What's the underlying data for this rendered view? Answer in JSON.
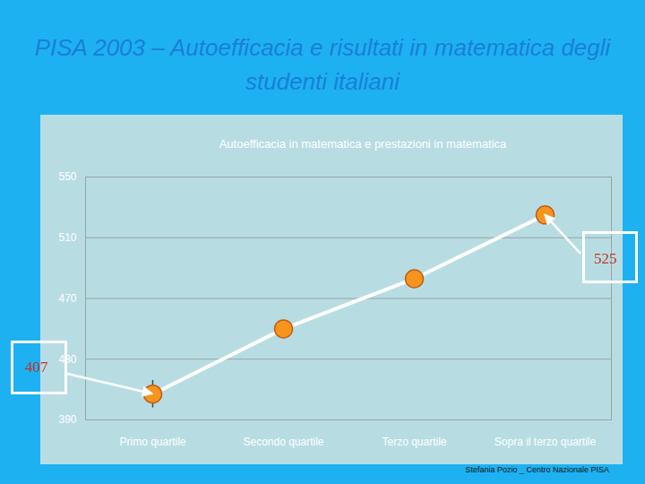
{
  "chart_data": {
    "type": "line",
    "title": "PISA 2003 – Autoefficacia e risultati in matematica degli studenti italiani",
    "subtitle": "Autoefficacia in matematica e prestazioni in matematica",
    "categories": [
      "Primo quartile",
      "Secondo quartile",
      "Terzo quartile",
      "Sopra il terzo quartile"
    ],
    "values": [
      407,
      450,
      483,
      525
    ],
    "errors": [
      9,
      3,
      3,
      3
    ],
    "color": "#ffffff",
    "marker": "circle",
    "ylim": [
      390,
      550
    ],
    "yticks": [
      390,
      430,
      470,
      510,
      550
    ],
    "grid": true,
    "annotations": [
      {
        "category": "Primo quartile",
        "text": "407"
      },
      {
        "category": "Sopra il terzo quartile",
        "text": "525"
      }
    ],
    "caption": "Stefania Pozio _ Centro Nazionale PISA"
  }
}
